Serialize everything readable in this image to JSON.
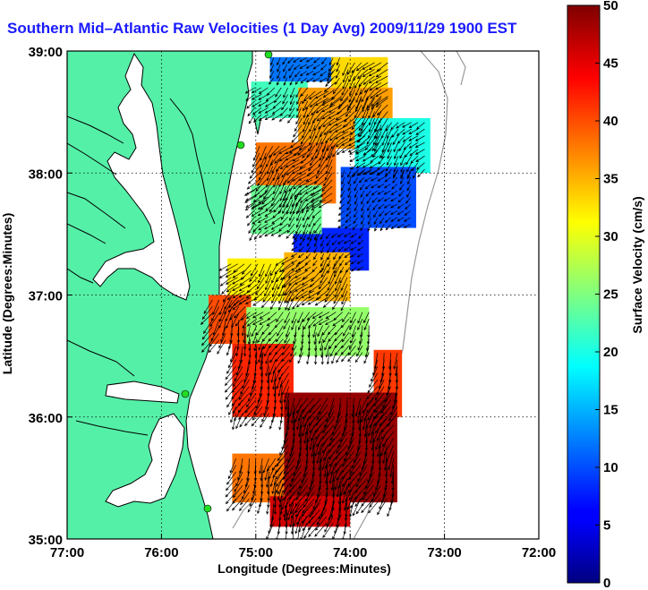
{
  "chart_data": {
    "type": "heatmap",
    "title": "Southern Mid–Atlantic Raw Velocities (1 Day Avg) 2009/11/29 1900 EST",
    "xlabel": "Longitude (Degrees:Minutes)",
    "ylabel": "Latitude (Degrees:Minutes)",
    "xlim": [
      -77,
      -72
    ],
    "ylim": [
      35,
      39
    ],
    "x_ticks": [
      {
        "value": -77,
        "label": "77:00"
      },
      {
        "value": -76,
        "label": "76:00"
      },
      {
        "value": -75,
        "label": "75:00"
      },
      {
        "value": -74,
        "label": "74:00"
      },
      {
        "value": -73,
        "label": "73:00"
      },
      {
        "value": -72,
        "label": "72:00"
      }
    ],
    "y_ticks": [
      {
        "value": 35,
        "label": "35:00"
      },
      {
        "value": 36,
        "label": "36:00"
      },
      {
        "value": 37,
        "label": "37:00"
      },
      {
        "value": 38,
        "label": "38:00"
      },
      {
        "value": 39,
        "label": "39:00"
      }
    ],
    "grid": true,
    "colorbar": {
      "label": "Surface Velocity (cm/s)",
      "range": [
        0,
        50
      ],
      "ticks": [
        0,
        5,
        10,
        15,
        20,
        25,
        30,
        35,
        40,
        45,
        50
      ],
      "colormap": "jet"
    },
    "land_color": "#55f0a8",
    "vector_color": "#000000",
    "velocity_regions": [
      {
        "lon": [
          -74.85,
          -74.1
        ],
        "lat": [
          38.75,
          38.95
        ],
        "speed_cm_s": 12
      },
      {
        "lon": [
          -74.2,
          -73.6
        ],
        "lat": [
          38.6,
          38.95
        ],
        "speed_cm_s": 33
      },
      {
        "lon": [
          -75.05,
          -74.45
        ],
        "lat": [
          38.45,
          38.75
        ],
        "speed_cm_s": 22
      },
      {
        "lon": [
          -74.55,
          -73.55
        ],
        "lat": [
          38.2,
          38.7
        ],
        "speed_cm_s": 36
      },
      {
        "lon": [
          -75.0,
          -74.15
        ],
        "lat": [
          37.75,
          38.25
        ],
        "speed_cm_s": 38
      },
      {
        "lon": [
          -73.95,
          -73.15
        ],
        "lat": [
          38.0,
          38.45
        ],
        "speed_cm_s": 20
      },
      {
        "lon": [
          -74.1,
          -73.3
        ],
        "lat": [
          37.55,
          38.05
        ],
        "speed_cm_s": 10
      },
      {
        "lon": [
          -74.6,
          -73.8
        ],
        "lat": [
          37.2,
          37.55
        ],
        "speed_cm_s": 8
      },
      {
        "lon": [
          -75.05,
          -74.3
        ],
        "lat": [
          37.5,
          37.9
        ],
        "speed_cm_s": 24
      },
      {
        "lon": [
          -75.3,
          -74.6
        ],
        "lat": [
          36.95,
          37.3
        ],
        "speed_cm_s": 32
      },
      {
        "lon": [
          -74.7,
          -74.0
        ],
        "lat": [
          36.95,
          37.35
        ],
        "speed_cm_s": 35
      },
      {
        "lon": [
          -75.5,
          -75.05
        ],
        "lat": [
          36.6,
          37.0
        ],
        "speed_cm_s": 40
      },
      {
        "lon": [
          -75.1,
          -73.8
        ],
        "lat": [
          36.5,
          36.9
        ],
        "speed_cm_s": 26
      },
      {
        "lon": [
          -73.75,
          -73.45
        ],
        "lat": [
          36.0,
          36.55
        ],
        "speed_cm_s": 41
      },
      {
        "lon": [
          -75.25,
          -74.6
        ],
        "lat": [
          36.0,
          36.6
        ],
        "speed_cm_s": 42
      },
      {
        "lon": [
          -74.7,
          -73.5
        ],
        "lat": [
          35.3,
          36.2
        ],
        "speed_cm_s": 49
      },
      {
        "lon": [
          -75.25,
          -74.7
        ],
        "lat": [
          35.3,
          35.7
        ],
        "speed_cm_s": 38
      },
      {
        "lon": [
          -74.85,
          -74.0
        ],
        "lat": [
          35.1,
          35.35
        ],
        "speed_cm_s": 46
      }
    ]
  }
}
